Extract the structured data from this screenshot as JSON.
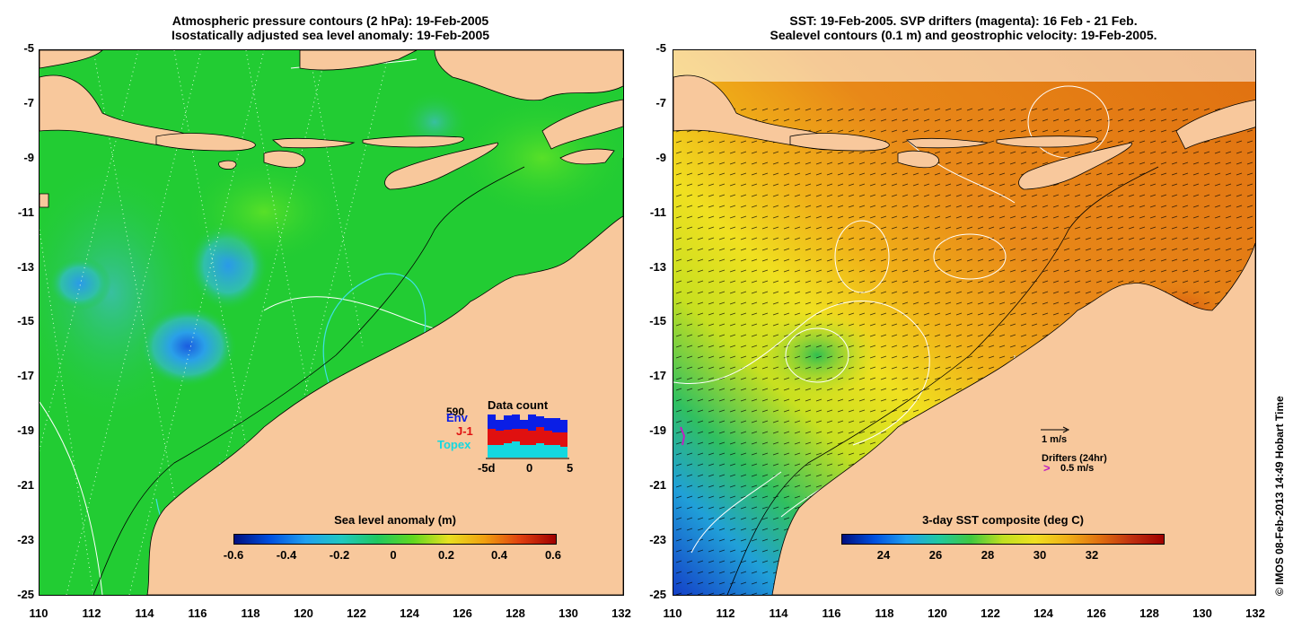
{
  "left_panel": {
    "title_line1": "Atmospheric pressure contours (2 hPa): 19-Feb-2005",
    "title_line2": "Isostatically adjusted sea level anomaly: 19-Feb-2005",
    "colorbar_title": "Sea level anomaly (m)",
    "colorbar_ticks": [
      "-0.6",
      "-0.4",
      "-0.2",
      "0",
      "0.2",
      "0.4",
      "0.6"
    ],
    "data_count": {
      "title": "Data count",
      "total": "590",
      "legend": [
        {
          "label": "Env",
          "color": "#0a1ee6"
        },
        {
          "label": "J-1",
          "color": "#e01010"
        },
        {
          "label": "Topex",
          "color": "#14d8e0"
        }
      ],
      "xticks": [
        "-5d",
        "0",
        "5"
      ]
    }
  },
  "right_panel": {
    "title_line1": "SST: 19-Feb-2005. SVP drifters (magenta): 16 Feb - 21 Feb.",
    "title_line2": "Sealevel contours (0.1 m) and geostrophic velocity: 19-Feb-2005.",
    "colorbar_title": "3-day SST composite (deg C)",
    "colorbar_ticks": [
      "24",
      "26",
      "28",
      "30",
      "32"
    ],
    "velocity_key": "1 m/s",
    "drifter_label": "Drifters (24hr)",
    "drifter_key": "0.5 m/s",
    "drifter_color": "#c020c0"
  },
  "axes": {
    "lat_ticks": [
      "-5",
      "-7",
      "-9",
      "-11",
      "-13",
      "-15",
      "-17",
      "-19",
      "-21",
      "-23",
      "-25"
    ],
    "lon_ticks": [
      "110",
      "112",
      "114",
      "116",
      "118",
      "120",
      "122",
      "124",
      "126",
      "128",
      "130",
      "132"
    ]
  },
  "colors": {
    "land": "#f8c89c",
    "sla_base": "#22cc33",
    "sst_base": "#f09018"
  },
  "stamp": "© IMOS 08-Feb-2013 14:49 Hobart Time"
}
